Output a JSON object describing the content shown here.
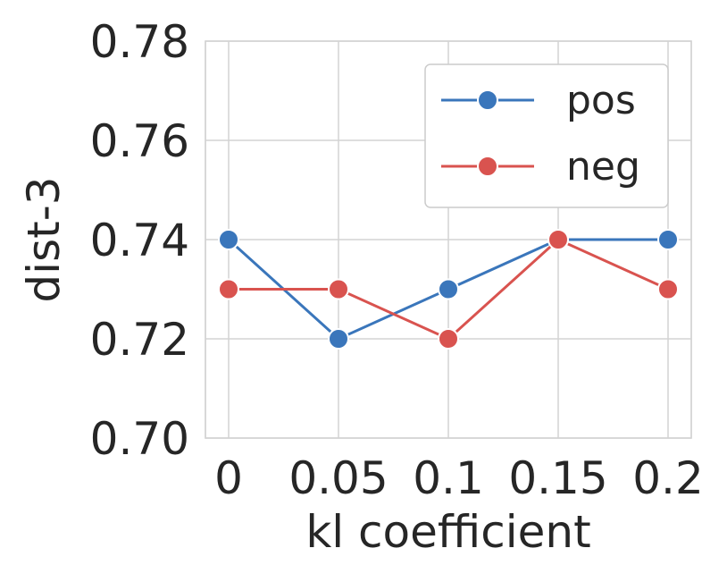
{
  "chart_data": {
    "type": "line",
    "x": [
      "0",
      "0.05",
      "0.1",
      "0.15",
      "0.2"
    ],
    "series": [
      {
        "name": "pos",
        "color": "#3a76bb",
        "values": [
          0.74,
          0.72,
          0.73,
          0.74,
          0.74
        ]
      },
      {
        "name": "neg",
        "color": "#d9534f",
        "values": [
          0.73,
          0.73,
          0.72,
          0.74,
          0.73
        ]
      }
    ],
    "xlabel": "kl coefficient",
    "ylabel": "dist-3",
    "ylim": [
      0.7,
      0.78
    ],
    "yticks": [
      "0.70",
      "0.72",
      "0.74",
      "0.76",
      "0.78"
    ],
    "grid": true,
    "legend_position": "top-right"
  }
}
